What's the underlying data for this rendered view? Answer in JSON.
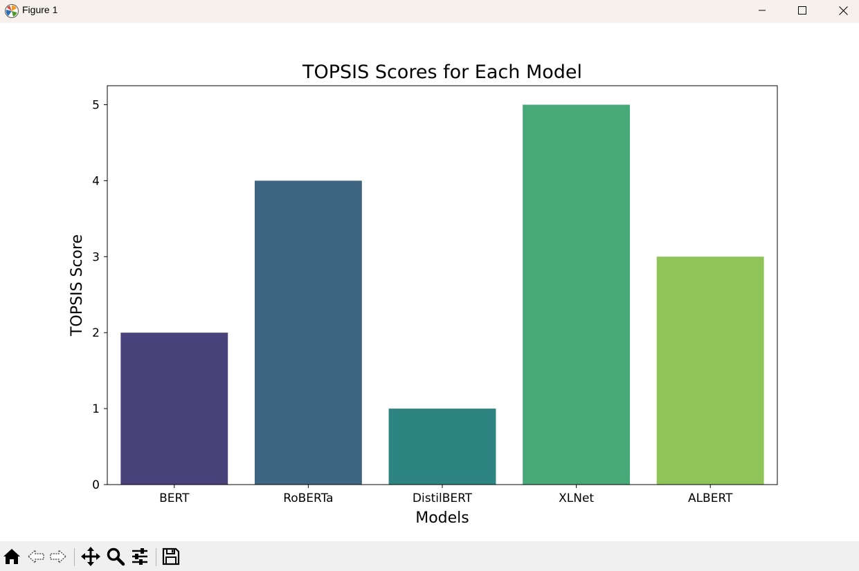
{
  "window": {
    "title": "Figure 1",
    "icons": {
      "app": "matplotlib-icon",
      "minimize": "minimize-icon",
      "maximize": "maximize-icon",
      "close": "close-icon"
    }
  },
  "toolbar": {
    "buttons": [
      "home-icon",
      "back-icon",
      "forward-icon",
      "pan-icon",
      "zoom-icon",
      "configure-subplots-icon",
      "save-icon"
    ]
  },
  "chart_data": {
    "type": "bar",
    "title": "TOPSIS Scores for Each Model",
    "xlabel": "Models",
    "ylabel": "TOPSIS Score",
    "categories": [
      "BERT",
      "RoBERTa",
      "DistilBERT",
      "XLNet",
      "ALBERT"
    ],
    "values": [
      2,
      4,
      1,
      5,
      3
    ],
    "colors": [
      "#4a437b",
      "#3e6682",
      "#2e8480",
      "#47a878",
      "#8ec458"
    ],
    "ylim": [
      0,
      5.25
    ],
    "yticks": [
      0,
      1,
      2,
      3,
      4,
      5
    ],
    "grid": false
  }
}
